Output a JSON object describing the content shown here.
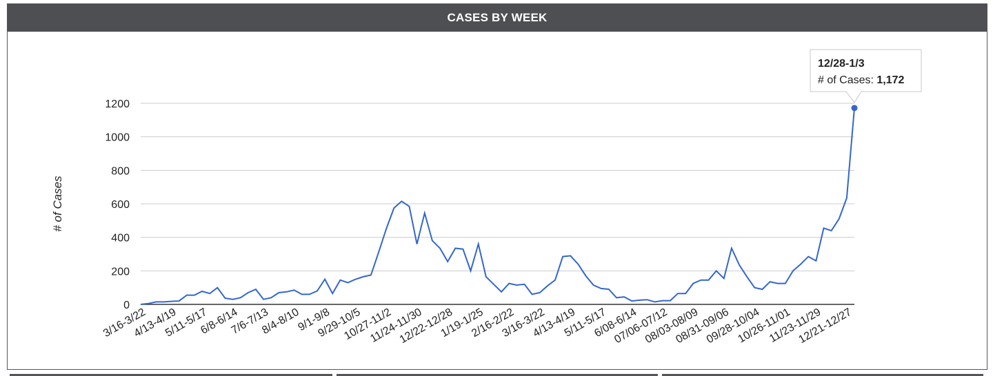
{
  "colors": {
    "header_bg": "#4e4f52",
    "line": "#3366cc",
    "grid": "#cccccc"
  },
  "tooltip": {
    "title": "12/28-1/3",
    "label": "# of Cases: ",
    "value": "1,172"
  },
  "chart_data": {
    "type": "line",
    "title": "CASES BY WEEK",
    "ylabel": "# of Cases",
    "xlabel": "",
    "ylim": [
      0,
      1200
    ],
    "yticks": [
      0,
      200,
      400,
      600,
      800,
      1000,
      1200
    ],
    "grid": true,
    "legend": "none",
    "x_tick_labels": [
      "3/16-3/22",
      "4/13-4/19",
      "5/11-5/17",
      "6/8-6/14",
      "7/6-7/13",
      "8/4-8/10",
      "9/1-9/8",
      "9/29-10/5",
      "10/27-11/2",
      "11/24-11/30",
      "12/22-12/28",
      "1/19-1/25",
      "2/16-2/22",
      "3/16-3/22",
      "4/13-4/19",
      "5/11-5/17",
      "6/08-6/14",
      "07/06-07/12",
      "08/03-08/09",
      "08/31-09/06",
      "09/28-10/04",
      "10/26-11/01",
      "11/23-11/29",
      "12/21-12/27"
    ],
    "x_tick_every": 4,
    "series": [
      {
        "values": [
          0,
          5,
          15,
          15,
          18,
          20,
          55,
          55,
          78,
          65,
          100,
          37,
          30,
          40,
          70,
          90,
          30,
          40,
          70,
          75,
          85,
          60,
          60,
          80,
          150,
          65,
          145,
          130,
          150,
          165,
          175,
          310,
          450,
          575,
          615,
          585,
          360,
          545,
          380,
          335,
          255,
          335,
          330,
          200,
          360,
          165,
          120,
          75,
          125,
          115,
          120,
          60,
          70,
          110,
          145,
          285,
          290,
          240,
          170,
          115,
          95,
          90,
          40,
          45,
          20,
          25,
          28,
          15,
          22,
          22,
          65,
          65,
          125,
          145,
          145,
          200,
          155,
          335,
          235,
          165,
          100,
          90,
          135,
          125,
          125,
          200,
          240,
          285,
          260,
          455,
          440,
          510,
          635,
          1172
        ]
      }
    ]
  }
}
